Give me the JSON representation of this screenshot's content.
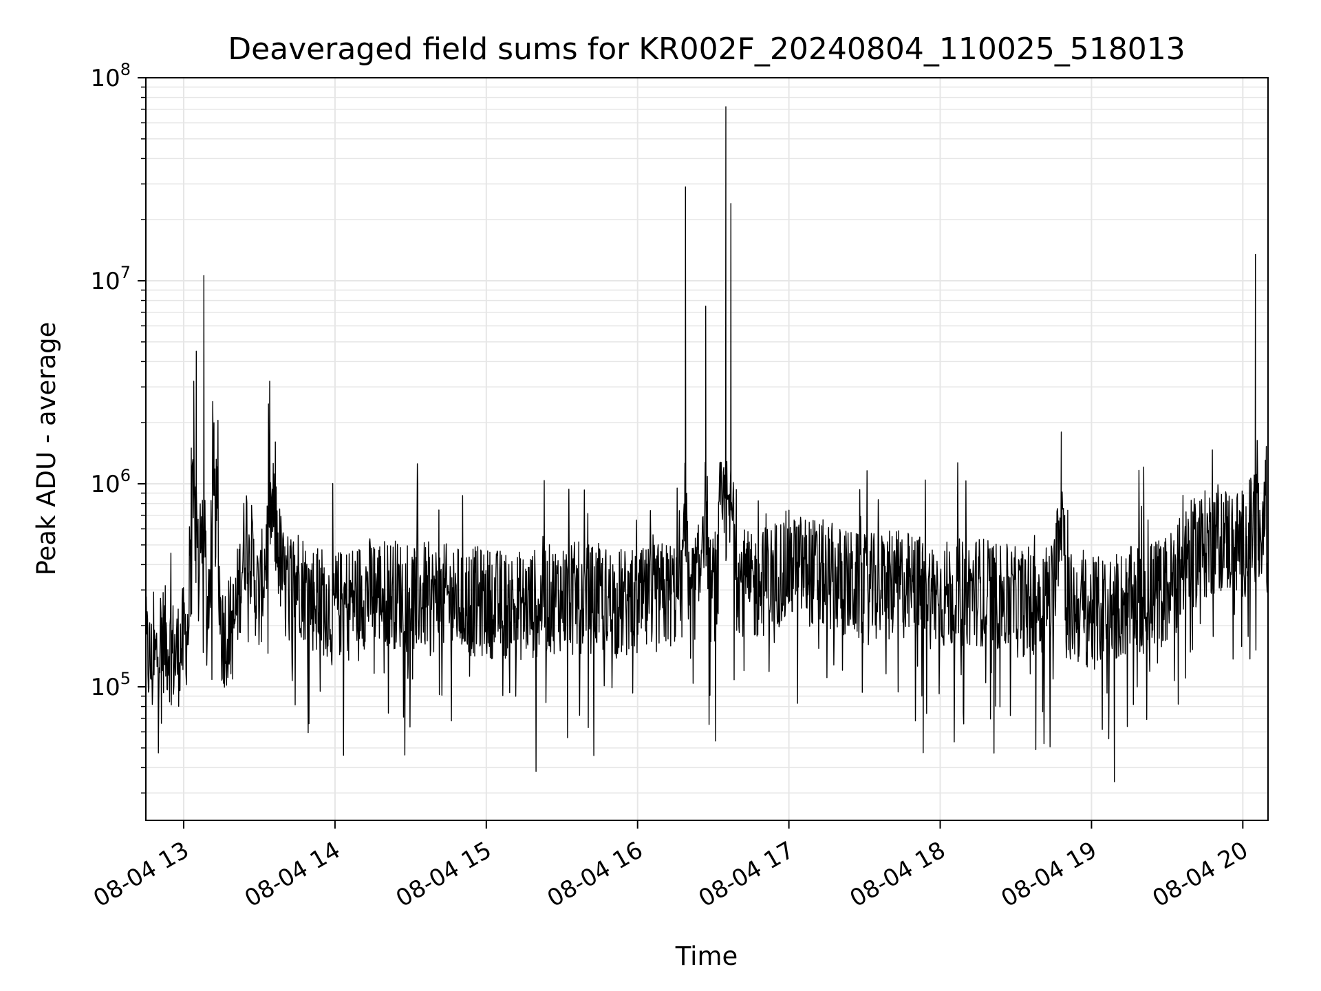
{
  "chart_data": {
    "type": "line",
    "title": "Deaveraged field sums for KR002F_20240804_110025_518013",
    "xlabel": "Time",
    "ylabel": "Peak ADU - average",
    "yscale": "log",
    "ylim": [
      22000,
      100000000
    ],
    "xlim": [
      "2024-08-04 12:45",
      "2024-08-04 20:10"
    ],
    "grid": true,
    "line_color": "#000000",
    "grid_color": "#e6e6e6",
    "x_ticks": [
      {
        "value": "2024-08-04 13:00",
        "label": "08-04 13"
      },
      {
        "value": "2024-08-04 14:00",
        "label": "08-04 14"
      },
      {
        "value": "2024-08-04 15:00",
        "label": "08-04 15"
      },
      {
        "value": "2024-08-04 16:00",
        "label": "08-04 16"
      },
      {
        "value": "2024-08-04 17:00",
        "label": "08-04 17"
      },
      {
        "value": "2024-08-04 18:00",
        "label": "08-04 18"
      },
      {
        "value": "2024-08-04 19:00",
        "label": "08-04 19"
      },
      {
        "value": "2024-08-04 20:00",
        "label": "08-04 20"
      }
    ],
    "y_ticks": [
      {
        "value": 100000,
        "base": "10",
        "exp": "5"
      },
      {
        "value": 1000000,
        "base": "10",
        "exp": "6"
      },
      {
        "value": 10000000,
        "base": "10",
        "exp": "7"
      },
      {
        "value": 100000000,
        "base": "10",
        "exp": "8"
      }
    ],
    "series": [
      {
        "x": [
          "2024-08-04 12:45",
          "2024-08-04 12:48",
          "2024-08-04 12:51",
          "2024-08-04 12:54",
          "2024-08-04 12:57",
          "2024-08-04 13:00",
          "2024-08-04 13:02",
          "2024-08-04 13:03",
          "2024-08-04 13:04",
          "2024-08-04 13:05",
          "2024-08-04 13:06",
          "2024-08-04 13:08",
          "2024-08-04 13:09",
          "2024-08-04 13:10",
          "2024-08-04 13:12",
          "2024-08-04 13:15",
          "2024-08-04 13:20",
          "2024-08-04 13:25",
          "2024-08-04 13:30",
          "2024-08-04 13:35",
          "2024-08-04 13:40",
          "2024-08-04 13:45",
          "2024-08-04 13:50",
          "2024-08-04 14:00",
          "2024-08-04 14:15",
          "2024-08-04 14:30",
          "2024-08-04 14:45",
          "2024-08-04 15:00",
          "2024-08-04 15:15",
          "2024-08-04 15:30",
          "2024-08-04 15:45",
          "2024-08-04 16:00",
          "2024-08-04 16:10",
          "2024-08-04 16:18",
          "2024-08-04 16:19",
          "2024-08-04 16:20",
          "2024-08-04 16:25",
          "2024-08-04 16:27",
          "2024-08-04 16:28",
          "2024-08-04 16:30",
          "2024-08-04 16:32",
          "2024-08-04 16:35",
          "2024-08-04 16:36",
          "2024-08-04 16:37",
          "2024-08-04 16:38",
          "2024-08-04 16:40",
          "2024-08-04 16:45",
          "2024-08-04 17:00",
          "2024-08-04 17:15",
          "2024-08-04 17:30",
          "2024-08-04 17:45",
          "2024-08-04 18:00",
          "2024-08-04 18:15",
          "2024-08-04 18:30",
          "2024-08-04 18:45",
          "2024-08-04 18:48",
          "2024-08-04 18:50",
          "2024-08-04 19:00",
          "2024-08-04 19:15",
          "2024-08-04 19:30",
          "2024-08-04 19:40",
          "2024-08-04 19:50",
          "2024-08-04 20:00",
          "2024-08-04 20:04",
          "2024-08-04 20:05",
          "2024-08-04 20:06",
          "2024-08-04 20:08",
          "2024-08-04 20:10"
        ],
        "values": [
          150000,
          120000,
          180000,
          160000,
          140000,
          170000,
          200000,
          1500000,
          3200000,
          4500000,
          180000,
          10600000,
          250000,
          200000,
          2000000,
          180000,
          200000,
          600000,
          250000,
          800000,
          300000,
          350000,
          280000,
          250000,
          300000,
          280000,
          270000,
          260000,
          250000,
          280000,
          270000,
          250000,
          280000,
          300000,
          29000000,
          280000,
          350000,
          7500000,
          300000,
          300000,
          350000,
          72000000,
          400000,
          24000000,
          900000,
          350000,
          300000,
          400000,
          350000,
          300000,
          320000,
          280000,
          300000,
          260000,
          280000,
          1800000,
          250000,
          230000,
          260000,
          300000,
          450000,
          550000,
          500000,
          600000,
          13500000,
          550000,
          600000,
          550000
        ]
      }
    ]
  }
}
